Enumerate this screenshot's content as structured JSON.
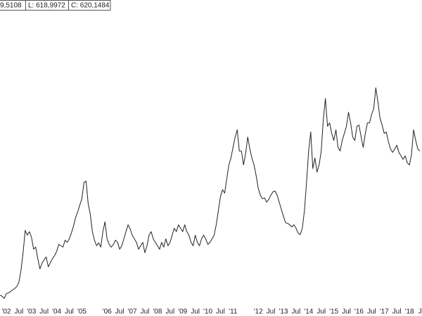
{
  "chart_data": {
    "type": "line",
    "ohlc": [
      "9,5108",
      "L: 618,9972",
      "C: 620,1484"
    ],
    "color": "#222222",
    "xlim": [
      "2001-10",
      "2018-07"
    ],
    "ylim": [
      0,
      1188
    ],
    "x": [
      "2001-10",
      "2001-11",
      "2001-12",
      "2002-01",
      "2002-02",
      "2002-03",
      "2002-04",
      "2002-05",
      "2002-06",
      "2002-07",
      "2002-08",
      "2002-09",
      "2002-10",
      "2002-11",
      "2002-12",
      "2003-01",
      "2003-02",
      "2003-03",
      "2003-04",
      "2003-05",
      "2003-06",
      "2003-07",
      "2003-08",
      "2003-09",
      "2003-10",
      "2003-11",
      "2003-12",
      "2004-01",
      "2004-02",
      "2004-03",
      "2004-04",
      "2004-05",
      "2004-06",
      "2004-07",
      "2004-08",
      "2004-09",
      "2004-10",
      "2004-11",
      "2004-12",
      "2005-01",
      "2005-02",
      "2005-03",
      "2005-04",
      "2005-05",
      "2005-06",
      "2005-07",
      "2005-08",
      "2005-09",
      "2005-10",
      "2005-11",
      "2005-12",
      "2006-01",
      "2006-02",
      "2006-03",
      "2006-04",
      "2006-05",
      "2006-06",
      "2006-07",
      "2006-08",
      "2006-09",
      "2006-10",
      "2006-11",
      "2006-12",
      "2007-01",
      "2007-02",
      "2007-03",
      "2007-04",
      "2007-05",
      "2007-06",
      "2007-07",
      "2007-08",
      "2007-09",
      "2007-10",
      "2007-11",
      "2007-12",
      "2008-01",
      "2008-02",
      "2008-03",
      "2008-04",
      "2008-05",
      "2008-06",
      "2008-07",
      "2008-08",
      "2008-09",
      "2008-10",
      "2008-11",
      "2008-12",
      "2009-01",
      "2009-02",
      "2009-03",
      "2009-04",
      "2009-05",
      "2009-06",
      "2009-07",
      "2009-08",
      "2009-09",
      "2009-10",
      "2009-11",
      "2009-12",
      "2010-01",
      "2010-02",
      "2010-03",
      "2010-04",
      "2010-05",
      "2010-06",
      "2010-07",
      "2010-08",
      "2010-09",
      "2010-10",
      "2010-11",
      "2010-12",
      "2011-01",
      "2011-02",
      "2011-03",
      "2011-04",
      "2011-05",
      "2011-06",
      "2011-07",
      "2011-08",
      "2011-09",
      "2011-10",
      "2011-11",
      "2011-12",
      "2012-01",
      "2012-02",
      "2012-03",
      "2012-04",
      "2012-05",
      "2012-06",
      "2012-07",
      "2012-08",
      "2012-09",
      "2012-10",
      "2012-11",
      "2012-12",
      "2013-01",
      "2013-02",
      "2013-03",
      "2013-04",
      "2013-05",
      "2013-06",
      "2013-07",
      "2013-08",
      "2013-09",
      "2013-10",
      "2013-11",
      "2013-12",
      "2014-01",
      "2014-02",
      "2014-03",
      "2014-04",
      "2014-05",
      "2014-06",
      "2014-07",
      "2014-08",
      "2014-09",
      "2014-10",
      "2014-11",
      "2014-12",
      "2015-01",
      "2015-02",
      "2015-03",
      "2015-04",
      "2015-05",
      "2015-06",
      "2015-07",
      "2015-08",
      "2015-09",
      "2015-10",
      "2015-11",
      "2015-12",
      "2016-01",
      "2016-02",
      "2016-03",
      "2016-04",
      "2016-05",
      "2016-06",
      "2016-07",
      "2016-08",
      "2016-09",
      "2016-10",
      "2016-11",
      "2016-12",
      "2017-01",
      "2017-02",
      "2017-03",
      "2017-04",
      "2017-05",
      "2017-06",
      "2017-07",
      "2017-08",
      "2017-09",
      "2017-10",
      "2017-11",
      "2017-12",
      "2018-01",
      "2018-02",
      "2018-03",
      "2018-04",
      "2018-05",
      "2018-06"
    ],
    "values": [
      79,
      74,
      66,
      84,
      87,
      92,
      98,
      103,
      111,
      127,
      172,
      238,
      322,
      304,
      317,
      296,
      251,
      259,
      216,
      177,
      198,
      211,
      222,
      185,
      201,
      216,
      227,
      243,
      269,
      264,
      259,
      285,
      277,
      290,
      312,
      338,
      370,
      391,
      417,
      441,
      502,
      507,
      422,
      383,
      317,
      285,
      264,
      275,
      259,
      317,
      354,
      290,
      269,
      259,
      269,
      285,
      277,
      251,
      264,
      290,
      317,
      343,
      327,
      304,
      290,
      277,
      251,
      264,
      277,
      238,
      264,
      304,
      317,
      290,
      277,
      264,
      251,
      277,
      259,
      290,
      264,
      277,
      304,
      330,
      317,
      343,
      330,
      317,
      343,
      317,
      304,
      277,
      264,
      304,
      277,
      264,
      290,
      304,
      290,
      269,
      277,
      290,
      304,
      343,
      396,
      449,
      475,
      462,
      515,
      568,
      594,
      634,
      673,
      700,
      620,
      620,
      568,
      612,
      673,
      628,
      594,
      568,
      528,
      480,
      454,
      441,
      444,
      428,
      438,
      454,
      467,
      470,
      454,
      428,
      401,
      375,
      351,
      348,
      343,
      335,
      343,
      330,
      312,
      306,
      330,
      396,
      502,
      620,
      692,
      554,
      594,
      541,
      568,
      620,
      739,
      818,
      713,
      726,
      686,
      660,
      700,
      634,
      620,
      660,
      686,
      713,
      766,
      726,
      673,
      660,
      713,
      718,
      673,
      634,
      686,
      726,
      726,
      758,
      779,
      858,
      805,
      744,
      718,
      686,
      692,
      655,
      628,
      615,
      628,
      642,
      615,
      602,
      589,
      602,
      576,
      568,
      607,
      700,
      660,
      628,
      620
    ],
    "xticks": [
      {
        "value": "2002-01",
        "label": "'02"
      },
      {
        "value": "2002-07",
        "label": "Jul"
      },
      {
        "value": "2003-01",
        "label": "'03"
      },
      {
        "value": "2003-07",
        "label": "Jul"
      },
      {
        "value": "2004-01",
        "label": "'04"
      },
      {
        "value": "2004-07",
        "label": "Jul"
      },
      {
        "value": "2005-01",
        "label": "'05"
      },
      {
        "value": "2006-01",
        "label": "'06"
      },
      {
        "value": "2006-07",
        "label": "Jul"
      },
      {
        "value": "2007-01",
        "label": "'07"
      },
      {
        "value": "2007-07",
        "label": "Jul"
      },
      {
        "value": "2008-01",
        "label": "'08"
      },
      {
        "value": "2008-07",
        "label": "Jul"
      },
      {
        "value": "2009-01",
        "label": "'09"
      },
      {
        "value": "2009-07",
        "label": "Jul"
      },
      {
        "value": "2010-01",
        "label": "'10"
      },
      {
        "value": "2010-07",
        "label": "Jul"
      },
      {
        "value": "2011-01",
        "label": "'11"
      },
      {
        "value": "2012-01",
        "label": "'12"
      },
      {
        "value": "2012-07",
        "label": "Jul"
      },
      {
        "value": "2013-01",
        "label": "'13"
      },
      {
        "value": "2013-07",
        "label": "Jul"
      },
      {
        "value": "2014-01",
        "label": "'14"
      },
      {
        "value": "2014-07",
        "label": "Jul"
      },
      {
        "value": "2015-01",
        "label": "'15"
      },
      {
        "value": "2015-07",
        "label": "Jul"
      },
      {
        "value": "2016-01",
        "label": "'16"
      },
      {
        "value": "2016-07",
        "label": "Jul"
      },
      {
        "value": "2017-01",
        "label": "'17"
      },
      {
        "value": "2017-07",
        "label": "Jul"
      },
      {
        "value": "2018-01",
        "label": "'18"
      },
      {
        "value": "2018-07",
        "label": "Ju"
      }
    ]
  }
}
